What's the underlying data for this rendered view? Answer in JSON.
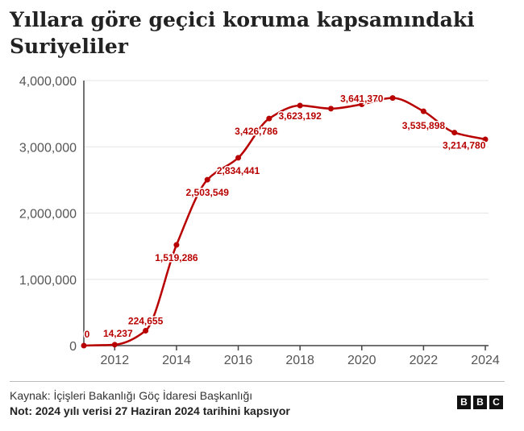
{
  "title": "Yıllara göre geçici koruma kapsamındaki Suriyeliler",
  "source": "Kaynak: İçişleri Bakanlığı Göç İdaresi Başkanlığı",
  "note": "Not: 2024 yılı verisi 27 Haziran 2024 tarihini kapsıyor",
  "logo": [
    "B",
    "B",
    "C"
  ],
  "colors": {
    "line": "#b80000",
    "grid": "#e6e6e6",
    "axis": "#444444",
    "tick_text": "#555555"
  },
  "chart_data": {
    "type": "line",
    "title": "Yıllara göre geçici koruma kapsamındaki Suriyeliler",
    "xlabel": "",
    "ylabel": "",
    "xlim": [
      2011,
      2024
    ],
    "ylim": [
      0,
      4000000
    ],
    "x_ticks": [
      2012,
      2014,
      2016,
      2018,
      2020,
      2022,
      2024
    ],
    "y_ticks": [
      0,
      1000000,
      2000000,
      3000000,
      4000000
    ],
    "y_tick_labels": [
      "0",
      "1,000,000",
      "2,000,000",
      "3,000,000",
      "4,000,000"
    ],
    "grid": true,
    "series": [
      {
        "x": [
          2011,
          2012,
          2013,
          2014,
          2015,
          2016,
          2017,
          2018,
          2019,
          2020,
          2021,
          2022,
          2023,
          2024
        ],
        "values": [
          0,
          14237,
          224655,
          1519286,
          2503549,
          2834441,
          3426786,
          3623192,
          3576370,
          3641370,
          3737369,
          3535898,
          3214780,
          3112683
        ]
      }
    ],
    "data_labels": [
      {
        "x": 2011,
        "text": "0"
      },
      {
        "x": 2012,
        "text": "14,237"
      },
      {
        "x": 2013,
        "text": "224,655"
      },
      {
        "x": 2014,
        "text": "1,519,286"
      },
      {
        "x": 2015,
        "text": "2,503,549"
      },
      {
        "x": 2016,
        "text": "2,834,441"
      },
      {
        "x": 2017,
        "text": "3,426,786"
      },
      {
        "x": 2018,
        "text": "3,623,192"
      },
      {
        "x": 2020,
        "text": "3,641,370"
      },
      {
        "x": 2022,
        "text": "3,535,898"
      },
      {
        "x": 2023,
        "text": "3,214,780"
      }
    ]
  }
}
